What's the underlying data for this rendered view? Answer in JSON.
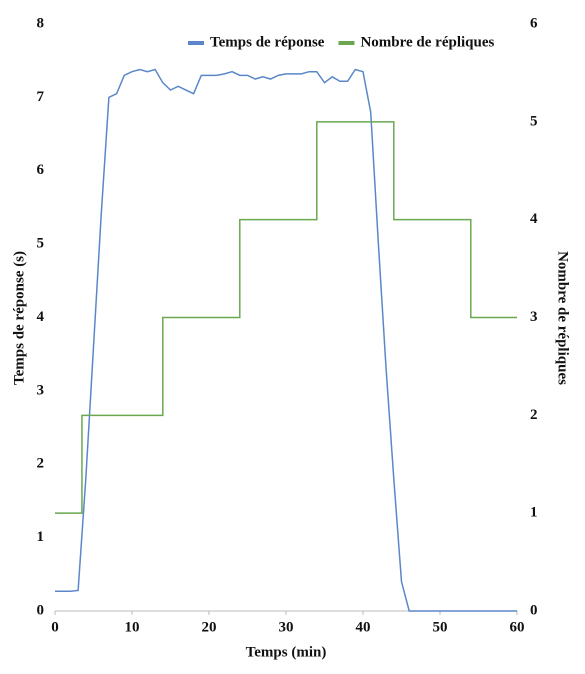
{
  "chart_data": {
    "type": "line",
    "xlabel": "Temps  (min)",
    "ylabel": "Temps de réponse (s)",
    "y2label": "Nombre de répliques",
    "xlim": [
      0,
      60
    ],
    "xticks": [
      0,
      10,
      20,
      30,
      40,
      50,
      60
    ],
    "ylim": [
      0,
      8
    ],
    "yticks": [
      0,
      1,
      2,
      3,
      4,
      5,
      6,
      7,
      8
    ],
    "y2lim": [
      0,
      6
    ],
    "y2ticks": [
      0,
      1,
      2,
      3,
      4,
      5,
      6
    ],
    "legend": "top-right",
    "series": [
      {
        "name": "Temps de réponse",
        "color": "#5b87c9",
        "x": [
          0,
          1,
          2,
          3,
          4,
          5,
          6,
          7,
          8,
          9,
          10,
          11,
          12,
          13,
          14,
          15,
          16,
          17,
          18,
          19,
          20,
          21,
          22,
          23,
          24,
          25,
          26,
          27,
          28,
          29,
          30,
          31,
          32,
          33,
          34,
          35,
          36,
          37,
          38,
          39,
          40,
          41,
          42,
          43,
          44,
          45,
          46,
          50,
          55,
          60
        ],
        "values": [
          0.27,
          0.27,
          0.27,
          0.28,
          1.8,
          3.6,
          5.4,
          7.0,
          7.05,
          7.3,
          7.35,
          7.38,
          7.35,
          7.38,
          7.2,
          7.1,
          7.15,
          7.1,
          7.05,
          7.3,
          7.3,
          7.3,
          7.32,
          7.35,
          7.3,
          7.3,
          7.25,
          7.28,
          7.25,
          7.3,
          7.32,
          7.32,
          7.32,
          7.35,
          7.35,
          7.2,
          7.28,
          7.22,
          7.22,
          7.38,
          7.35,
          6.8,
          5.0,
          3.3,
          1.8,
          0.4,
          0,
          0,
          0,
          0
        ]
      },
      {
        "name": "Nombre de répliques",
        "color": "#6aa84f",
        "axis": "y2",
        "x": [
          0,
          3.5,
          3.5,
          14,
          14,
          24,
          24,
          34,
          34,
          44,
          44,
          54,
          54,
          60
        ],
        "values": [
          1,
          1,
          2,
          2,
          3,
          3,
          4,
          4,
          5,
          5,
          4,
          4,
          3,
          3
        ]
      }
    ]
  }
}
